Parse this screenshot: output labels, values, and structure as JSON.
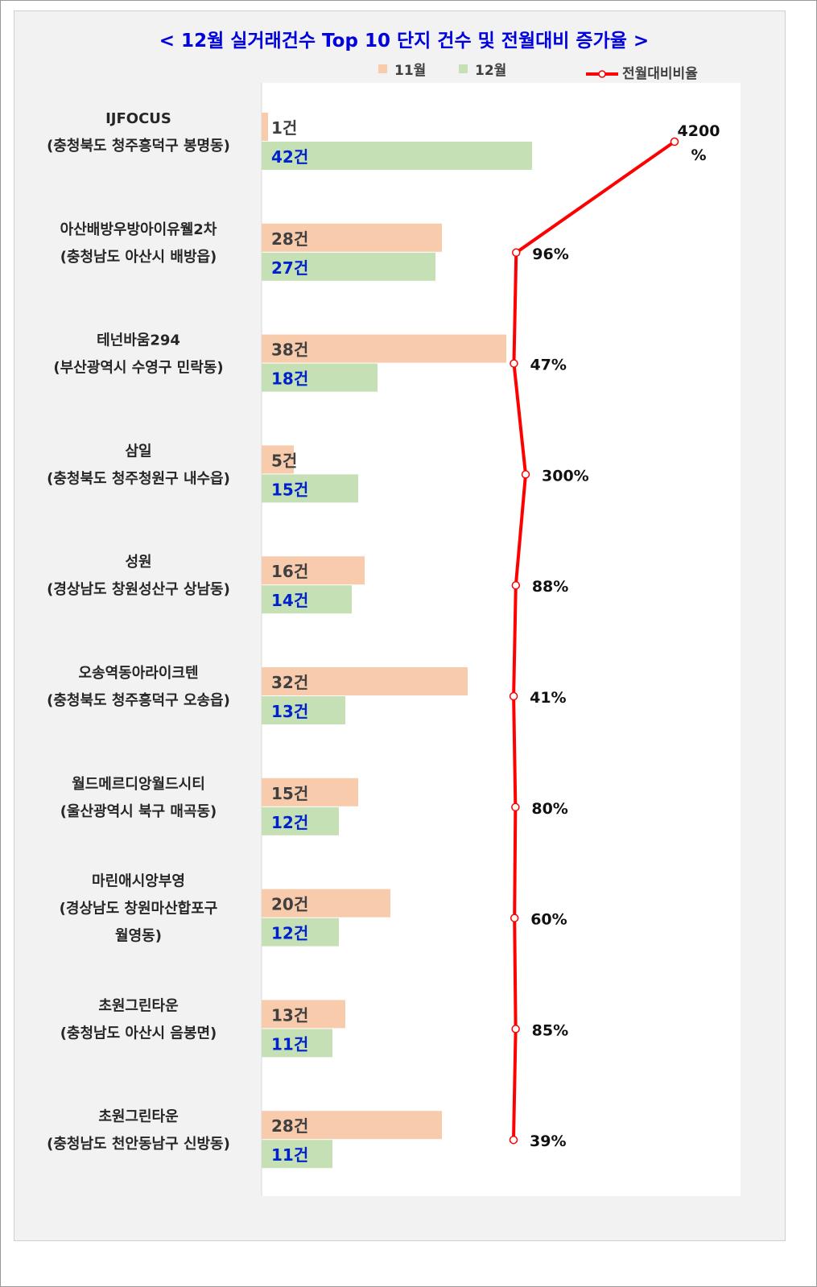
{
  "chart_data": {
    "type": "bar",
    "orientation": "horizontal",
    "title": "< 12월 실거래건수 Top 10 단지 건수 및 전월대비 증가율 >",
    "categories": [
      {
        "name": "IJFOCUS",
        "region": [
          "(충청북도 청주흥덕구 봉명동)"
        ]
      },
      {
        "name": "아산배방우방아이유웰2차",
        "region": [
          "(충청남도 아산시 배방읍)"
        ]
      },
      {
        "name": "테넌바움294",
        "region": [
          "(부산광역시 수영구 민락동)"
        ]
      },
      {
        "name": "삼일",
        "region": [
          "(충청북도 청주청원구 내수읍)"
        ]
      },
      {
        "name": "성원",
        "region": [
          "(경상남도 창원성산구 상남동)"
        ]
      },
      {
        "name": "오송역동아라이크텐",
        "region": [
          "(충청북도 청주흥덕구 오송읍)"
        ]
      },
      {
        "name": "월드메르디앙월드시티",
        "region": [
          "(울산광역시 북구 매곡동)"
        ]
      },
      {
        "name": "마린애시앙부영",
        "region": [
          "(경상남도 창원마산합포구",
          "월영동)"
        ]
      },
      {
        "name": "초원그린타운",
        "region": [
          "(충청남도 아산시 음봉면)"
        ]
      },
      {
        "name": "초원그린타운",
        "region": [
          "(충청남도 천안동남구 신방동)"
        ]
      }
    ],
    "series": [
      {
        "name": "11월",
        "color": "#f8cbad",
        "values": [
          1,
          28,
          38,
          5,
          16,
          32,
          15,
          20,
          13,
          28
        ],
        "labels": [
          "1건",
          "28건",
          "38건",
          "5건",
          "16건",
          "32건",
          "15건",
          "20건",
          "13건",
          "28건"
        ]
      },
      {
        "name": "12월",
        "color": "#c5e0b4",
        "values": [
          42,
          27,
          18,
          15,
          14,
          13,
          12,
          12,
          11,
          11
        ],
        "labels": [
          "42건",
          "27건",
          "18건",
          "15건",
          "14건",
          "13건",
          "12건",
          "12건",
          "11건",
          "11건"
        ]
      },
      {
        "name": "전월대비비율",
        "color": "#ff0000",
        "type": "line",
        "values": [
          4200,
          96,
          47,
          300,
          88,
          41,
          80,
          60,
          85,
          39
        ],
        "labels": [
          [
            "4200",
            "%"
          ],
          [
            "96%"
          ],
          [
            "47%"
          ],
          [
            "300%"
          ],
          [
            "88%"
          ],
          [
            "41%"
          ],
          [
            "80%"
          ],
          [
            "60%"
          ],
          [
            "85%"
          ],
          [
            "39%"
          ]
        ]
      }
    ],
    "xlim_bar": [
      0,
      74
    ],
    "legend": "top",
    "grid": false
  }
}
